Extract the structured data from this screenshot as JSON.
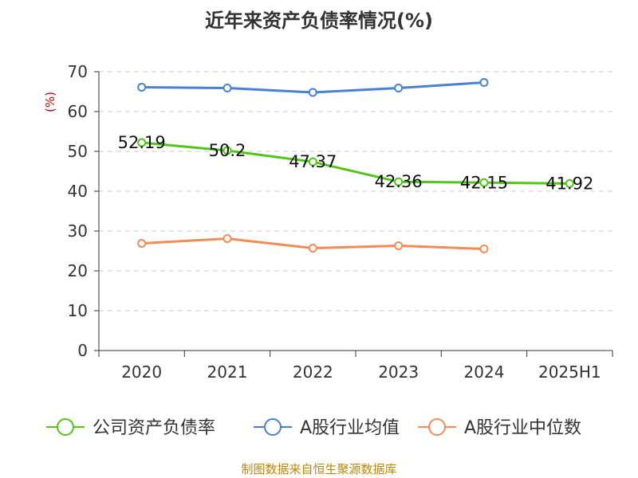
{
  "title": "近年来资产负债率情况(%)",
  "source": "制图数据来自恒生聚源数据库",
  "chart_data": {
    "type": "line",
    "title": "近年来资产负债率情况(%)",
    "ylabel": "(%)",
    "xlabel": "",
    "categories": [
      "2020",
      "2021",
      "2022",
      "2023",
      "2024",
      "2025H1"
    ],
    "ylim": [
      0,
      70
    ],
    "yticks": [
      0,
      10,
      20,
      30,
      40,
      50,
      60,
      70
    ],
    "grid": true,
    "legend_position": "bottom",
    "series": [
      {
        "name": "公司资产负债率",
        "color": "#52c41a",
        "values": [
          52.19,
          50.2,
          47.37,
          42.36,
          42.15,
          41.92
        ],
        "show_labels": true
      },
      {
        "name": "A股行业均值",
        "color": "#4a7fd6",
        "values": [
          66.1,
          65.9,
          64.8,
          65.9,
          67.3,
          null
        ],
        "show_labels": false
      },
      {
        "name": "A股行业中位数",
        "color": "#f28b56",
        "values": [
          26.9,
          28.1,
          25.7,
          26.3,
          25.5,
          null
        ],
        "show_labels": false
      }
    ]
  }
}
